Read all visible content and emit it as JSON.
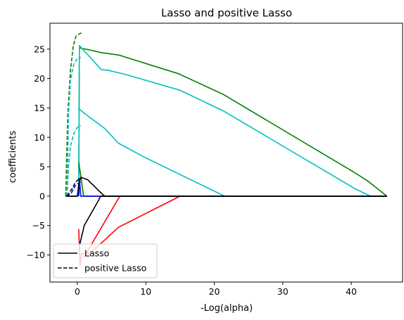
{
  "chart_data": {
    "type": "line",
    "title": "Lasso and positive Lasso",
    "xlabel": "-Log(alpha)",
    "ylabel": "coefficients",
    "xlim": [
      -4,
      47.5
    ],
    "ylim": [
      -14.6,
      29.4
    ],
    "xticks": [
      0,
      10,
      20,
      30,
      40
    ],
    "yticks": [
      -10,
      -5,
      0,
      5,
      10,
      15,
      20,
      25
    ],
    "grid": false,
    "legend": {
      "placement": "lower-left",
      "entries": [
        {
          "label": "Lasso",
          "style": "solid",
          "color": "#000000"
        },
        {
          "label": "positive Lasso",
          "style": "dashed",
          "color": "#000000"
        }
      ]
    },
    "series": [
      {
        "group": "Lasso",
        "color": "#008000",
        "style": "solid",
        "points": [
          [
            -1.7,
            0
          ],
          [
            0.1,
            0
          ],
          [
            0.2,
            0.3
          ],
          [
            0.3,
            25.2
          ],
          [
            2,
            24.8
          ],
          [
            3.5,
            24.4
          ],
          [
            6,
            24
          ],
          [
            14.8,
            20.8
          ],
          [
            21.3,
            17.3
          ],
          [
            40.5,
            4
          ],
          [
            42.5,
            2.5
          ],
          [
            45.2,
            0
          ]
        ]
      },
      {
        "group": "Lasso",
        "color": "#00bfbf",
        "style": "solid",
        "points": [
          [
            -1.7,
            0
          ],
          [
            0.1,
            0
          ],
          [
            0.2,
            0.3
          ],
          [
            0.3,
            25.6
          ],
          [
            3.5,
            21.5
          ],
          [
            4.5,
            21.4
          ],
          [
            7,
            20.7
          ],
          [
            15,
            18
          ],
          [
            21.3,
            14.5
          ],
          [
            40.5,
            1.3
          ],
          [
            42.8,
            0
          ]
        ]
      },
      {
        "group": "Lasso",
        "color": "#00bfbf",
        "style": "solid",
        "points": [
          [
            0.1,
            15
          ],
          [
            1,
            14.1
          ],
          [
            4,
            11.5
          ],
          [
            6,
            9
          ],
          [
            10,
            6.5
          ],
          [
            21.5,
            0
          ],
          [
            45.2,
            0
          ]
        ]
      },
      {
        "group": "Lasso",
        "color": "#ff0000",
        "style": "solid",
        "points": [
          [
            0.2,
            -5.6
          ],
          [
            0.4,
            -11.9
          ],
          [
            0.6,
            -9.8
          ],
          [
            2,
            -9.6
          ],
          [
            6,
            -5.3
          ],
          [
            15,
            0
          ],
          [
            45.2,
            0
          ]
        ]
      },
      {
        "group": "Lasso",
        "color": "#ff0000",
        "style": "solid",
        "points": [
          [
            0.9,
            -10.5
          ],
          [
            6.2,
            0
          ],
          [
            45.2,
            0
          ]
        ]
      },
      {
        "group": "Lasso",
        "color": "#008000",
        "style": "solid",
        "points": [
          [
            0.2,
            5.7
          ],
          [
            0.5,
            3.5
          ],
          [
            0.9,
            0
          ],
          [
            45.2,
            0
          ]
        ]
      },
      {
        "group": "Lasso",
        "color": "#0000ff",
        "style": "solid",
        "points": [
          [
            0.2,
            0
          ],
          [
            0.3,
            3
          ],
          [
            0.5,
            0
          ],
          [
            45.2,
            0
          ]
        ]
      },
      {
        "group": "Lasso",
        "color": "#000000",
        "style": "solid",
        "points": [
          [
            0.3,
            -8.5
          ],
          [
            1,
            -5
          ],
          [
            3.1,
            -0.7
          ],
          [
            3.4,
            0
          ],
          [
            45.2,
            0
          ]
        ]
      },
      {
        "group": "Lasso",
        "color": "#000000",
        "style": "solid",
        "points": [
          [
            -1.7,
            0
          ],
          [
            0,
            0
          ],
          [
            0.2,
            2
          ],
          [
            0.5,
            3.2
          ],
          [
            1.5,
            2.8
          ],
          [
            3.5,
            0.5
          ],
          [
            4,
            0
          ],
          [
            45.2,
            0
          ]
        ]
      },
      {
        "group": "positive Lasso",
        "color": "#008000",
        "style": "dashed",
        "points": [
          [
            -1.7,
            0
          ],
          [
            -1.4,
            14
          ],
          [
            -1,
            21.5
          ],
          [
            -0.6,
            25.5
          ],
          [
            -0.2,
            27.2
          ],
          [
            0.3,
            27.6
          ],
          [
            0.7,
            27.8
          ]
        ]
      },
      {
        "group": "positive Lasso",
        "color": "#00bfbf",
        "style": "dashed",
        "points": [
          [
            -1.5,
            0
          ],
          [
            -1.3,
            14
          ],
          [
            -1,
            19.8
          ],
          [
            -0.5,
            22.5
          ],
          [
            0,
            23.4
          ],
          [
            0.5,
            23.6
          ]
        ]
      },
      {
        "group": "positive Lasso",
        "color": "#00bfbf",
        "style": "dashed",
        "points": [
          [
            -1.5,
            0
          ],
          [
            -1.3,
            5
          ],
          [
            -1,
            8.5
          ],
          [
            -0.5,
            10.7
          ],
          [
            0,
            11.7
          ],
          [
            0.5,
            12
          ]
        ]
      },
      {
        "group": "positive Lasso",
        "color": "#0000ff",
        "style": "dashed",
        "points": [
          [
            -1.6,
            0
          ],
          [
            -0.9,
            0.5
          ],
          [
            -0.3,
            1.8
          ],
          [
            0.3,
            2.3
          ],
          [
            0.5,
            2.4
          ]
        ]
      },
      {
        "group": "positive Lasso",
        "color": "#000000",
        "style": "dashed",
        "points": [
          [
            -1.5,
            0
          ],
          [
            -0.7,
            1.4
          ],
          [
            -0.3,
            2.3
          ],
          [
            0.2,
            2.9
          ],
          [
            0.5,
            3.1
          ]
        ]
      }
    ]
  }
}
